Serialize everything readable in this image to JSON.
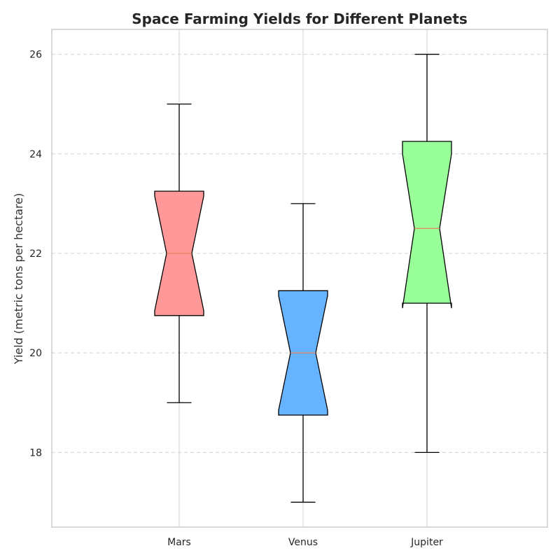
{
  "chart_data": {
    "type": "box",
    "title": "Space Farming Yields for Different Planets",
    "xlabel": "",
    "ylabel": "Yield (metric tons per hectare)",
    "ylim": [
      16.5,
      26.5
    ],
    "yticks": [
      18,
      20,
      22,
      24,
      26
    ],
    "ytick_labels": [
      "18",
      "20",
      "22",
      "24",
      "26"
    ],
    "grid": "y-dashed and x-solid",
    "notched": true,
    "categories": [
      "Mars",
      "Venus",
      "Jupiter"
    ],
    "boxes": [
      {
        "name": "Mars",
        "whisker_low": 19,
        "q1": 20.75,
        "median": 22,
        "q3": 23.25,
        "whisker_high": 25,
        "notch_low": 20.85,
        "notch_high": 23.15,
        "color": "#ff9999"
      },
      {
        "name": "Venus",
        "whisker_low": 17,
        "q1": 18.75,
        "median": 20,
        "q3": 21.25,
        "whisker_high": 23,
        "notch_low": 18.85,
        "notch_high": 21.15,
        "color": "#66b3ff"
      },
      {
        "name": "Jupiter",
        "whisker_low": 18,
        "q1": 21,
        "median": 22.5,
        "q3": 24.25,
        "whisker_high": 26,
        "notch_low": 20.9,
        "notch_high": 24.0,
        "color": "#99ff99"
      }
    ],
    "median_color": "#e8845c"
  }
}
